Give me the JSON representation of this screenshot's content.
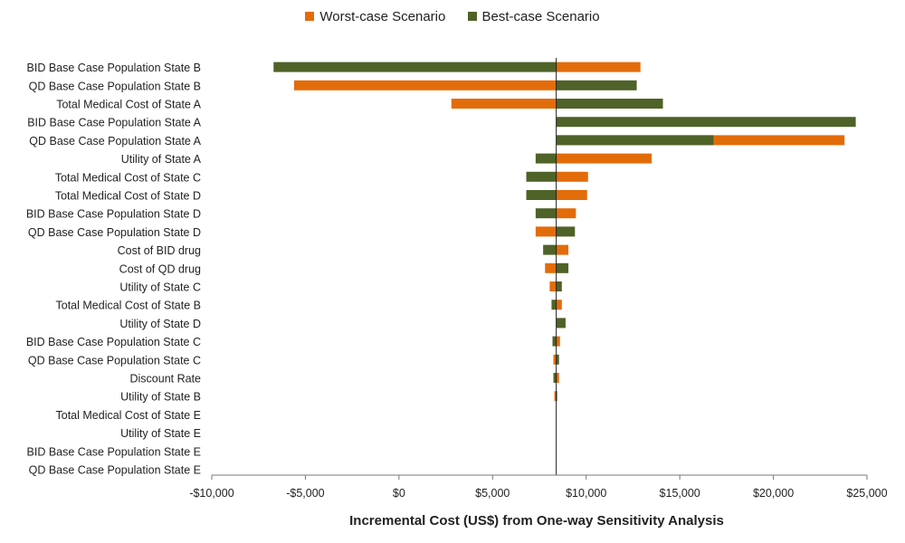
{
  "chart_data": {
    "type": "bar",
    "orientation": "horizontal",
    "xlabel": "Incremental Cost (US$) from One-way Sensitivity Analysis",
    "xlim": [
      -10000,
      25000
    ],
    "xticks": [
      -10000,
      -5000,
      0,
      5000,
      10000,
      15000,
      20000,
      25000
    ],
    "xtick_labels": [
      "-$10,000",
      "-$5,000",
      "$0",
      "$5,000",
      "$10,000",
      "$15,000",
      "$20,000",
      "$25,000"
    ],
    "base_value": 8400,
    "legend": {
      "placement": "top-center"
    },
    "categories": [
      "BID Base Case Population State B",
      "QD Base Case Population State B",
      "Total Medical Cost of State A",
      "BID Base Case Population State A",
      "QD Base Case Population State A",
      "Utility of State A",
      "Total Medical Cost of State C",
      "Total Medical Cost of State D",
      "BID Base Case Population State D",
      "QD Base Case Population State D",
      "Cost of BID drug",
      "Cost of QD drug",
      "Utility of State C",
      "Total Medical Cost of State B",
      "Utility of State D",
      "BID Base Case Population State C",
      "QD Base Case Population State C",
      "Discount Rate",
      "Utility of State B",
      "Total Medical Cost of State E",
      "Utility of State E",
      "BID Base Case Population State E",
      "QD Base Case Population State E"
    ],
    "series": [
      {
        "name": "Worst-case Scenario",
        "color": "#e36c0a",
        "values": [
          12900,
          -5600,
          2800,
          8400,
          23800,
          13500,
          10100,
          10050,
          9450,
          7300,
          9050,
          7800,
          8050,
          8700,
          8400,
          8600,
          8250,
          8550,
          8300,
          8400,
          8400,
          8400,
          8400
        ]
      },
      {
        "name": "Best-case Scenario",
        "color": "#4f6228",
        "values": [
          -6700,
          12700,
          14100,
          24400,
          16800,
          7300,
          6800,
          6800,
          7300,
          9400,
          7700,
          9050,
          8700,
          8150,
          8900,
          8200,
          8550,
          8250,
          8450,
          8400,
          8400,
          8400,
          8400
        ]
      }
    ],
    "gridlines": false
  }
}
